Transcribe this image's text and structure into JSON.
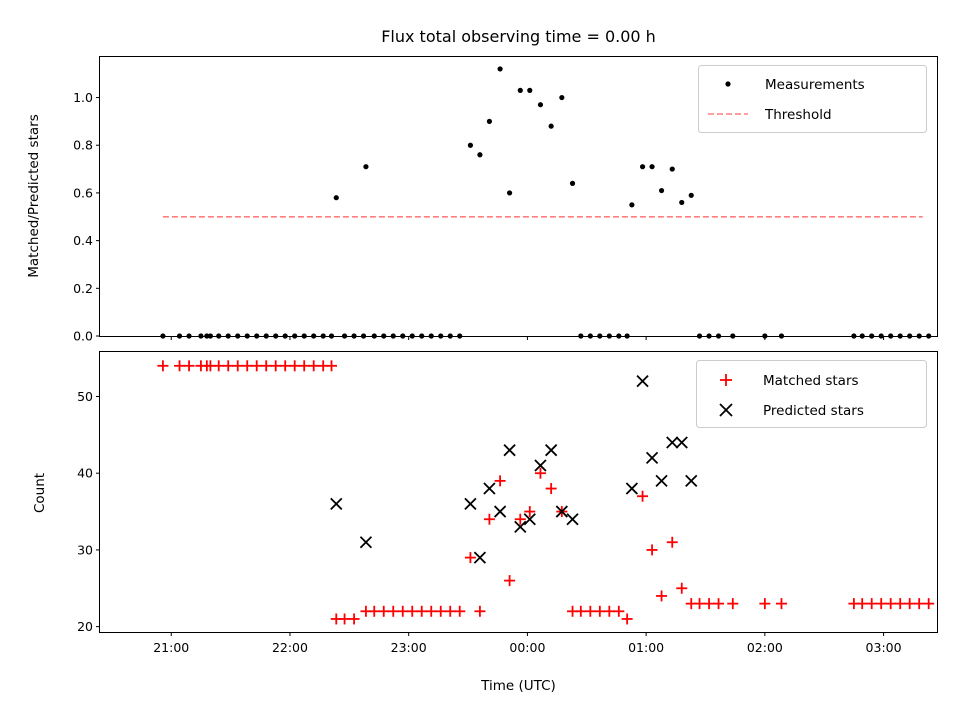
{
  "chart_data": {
    "title": "Flux total observing time = 0.00 h",
    "xlabel": "Time (UTC)",
    "x_unit": "hours (UTC), values after midnight continue above 24",
    "xlim": [
      20.4,
      27.45
    ],
    "x_ticks": [
      {
        "value": 21,
        "label": "21:00"
      },
      {
        "value": 22,
        "label": "22:00"
      },
      {
        "value": 23,
        "label": "23:00"
      },
      {
        "value": 24,
        "label": "00:00"
      },
      {
        "value": 25,
        "label": "01:00"
      },
      {
        "value": 26,
        "label": "02:00"
      },
      {
        "value": 27,
        "label": "03:00"
      }
    ],
    "panels": [
      {
        "type": "scatter",
        "ylabel": "Matched/Predicted stars",
        "ylim": [
          0,
          1.17
        ],
        "y_ticks": [
          {
            "value": 0.0,
            "label": "0.0"
          },
          {
            "value": 0.2,
            "label": "0.2"
          },
          {
            "value": 0.4,
            "label": "0.4"
          },
          {
            "value": 0.6,
            "label": "0.6"
          },
          {
            "value": 0.8,
            "label": "0.8"
          },
          {
            "value": 1.0,
            "label": "1.0"
          }
        ],
        "legend_position": "top-right",
        "series": [
          {
            "name": "Measurements",
            "marker": "dot",
            "color": "#000000",
            "points": [
              [
                20.93,
                0
              ],
              [
                21.07,
                0
              ],
              [
                21.15,
                0
              ],
              [
                21.25,
                0
              ],
              [
                21.3,
                0
              ],
              [
                21.33,
                0
              ],
              [
                21.4,
                0
              ],
              [
                21.48,
                0
              ],
              [
                21.56,
                0
              ],
              [
                21.64,
                0
              ],
              [
                21.72,
                0
              ],
              [
                21.8,
                0
              ],
              [
                21.88,
                0
              ],
              [
                21.96,
                0
              ],
              [
                22.04,
                0
              ],
              [
                22.12,
                0
              ],
              [
                22.2,
                0
              ],
              [
                22.28,
                0
              ],
              [
                22.35,
                0
              ],
              [
                22.39,
                0.58
              ],
              [
                22.46,
                0
              ],
              [
                22.54,
                0
              ],
              [
                22.62,
                0
              ],
              [
                22.64,
                0.71
              ],
              [
                22.71,
                0
              ],
              [
                22.79,
                0
              ],
              [
                22.87,
                0
              ],
              [
                22.95,
                0
              ],
              [
                23.03,
                0
              ],
              [
                23.11,
                0
              ],
              [
                23.19,
                0
              ],
              [
                23.27,
                0
              ],
              [
                23.35,
                0
              ],
              [
                23.43,
                0
              ],
              [
                23.52,
                0.8
              ],
              [
                23.6,
                0.76
              ],
              [
                23.68,
                0.9
              ],
              [
                23.77,
                1.12
              ],
              [
                23.85,
                0.6
              ],
              [
                23.94,
                1.03
              ],
              [
                24.02,
                1.03
              ],
              [
                24.11,
                0.97
              ],
              [
                24.2,
                0.88
              ],
              [
                24.29,
                1.0
              ],
              [
                24.38,
                0.64
              ],
              [
                24.45,
                0
              ],
              [
                24.53,
                0
              ],
              [
                24.61,
                0
              ],
              [
                24.69,
                0
              ],
              [
                24.77,
                0
              ],
              [
                24.84,
                0
              ],
              [
                24.88,
                0.55
              ],
              [
                24.97,
                0.71
              ],
              [
                25.05,
                0.71
              ],
              [
                25.13,
                0.61
              ],
              [
                25.22,
                0.7
              ],
              [
                25.3,
                0.56
              ],
              [
                25.38,
                0.59
              ],
              [
                25.45,
                0
              ],
              [
                25.53,
                0
              ],
              [
                25.61,
                0
              ],
              [
                25.73,
                0
              ],
              [
                26.0,
                0
              ],
              [
                26.14,
                0
              ],
              [
                26.75,
                0
              ],
              [
                26.82,
                0
              ],
              [
                26.9,
                0
              ],
              [
                26.98,
                0
              ],
              [
                27.06,
                0
              ],
              [
                27.14,
                0
              ],
              [
                27.22,
                0
              ],
              [
                27.3,
                0
              ],
              [
                27.38,
                0
              ]
            ]
          },
          {
            "name": "Threshold",
            "marker": "dashed-line",
            "color": "#ff7f7f",
            "points": [
              [
                20.93,
                0.5
              ],
              [
                27.33,
                0.5
              ]
            ]
          }
        ]
      },
      {
        "type": "scatter",
        "ylabel": "Count",
        "ylim": [
          19.3,
          55.8
        ],
        "y_ticks": [
          {
            "value": 20,
            "label": "20"
          },
          {
            "value": 30,
            "label": "30"
          },
          {
            "value": 40,
            "label": "40"
          },
          {
            "value": 50,
            "label": "50"
          }
        ],
        "legend_position": "top-right",
        "series": [
          {
            "name": "Matched stars",
            "marker": "plus",
            "color": "#ff0000",
            "points": [
              [
                20.93,
                54
              ],
              [
                21.07,
                54
              ],
              [
                21.15,
                54
              ],
              [
                21.25,
                54
              ],
              [
                21.3,
                54
              ],
              [
                21.33,
                54
              ],
              [
                21.4,
                54
              ],
              [
                21.48,
                54
              ],
              [
                21.56,
                54
              ],
              [
                21.64,
                54
              ],
              [
                21.72,
                54
              ],
              [
                21.8,
                54
              ],
              [
                21.88,
                54
              ],
              [
                21.96,
                54
              ],
              [
                22.04,
                54
              ],
              [
                22.12,
                54
              ],
              [
                22.2,
                54
              ],
              [
                22.28,
                54
              ],
              [
                22.35,
                54
              ],
              [
                22.39,
                21
              ],
              [
                22.46,
                21
              ],
              [
                22.54,
                21
              ],
              [
                22.64,
                22
              ],
              [
                22.71,
                22
              ],
              [
                22.79,
                22
              ],
              [
                22.87,
                22
              ],
              [
                22.95,
                22
              ],
              [
                23.03,
                22
              ],
              [
                23.11,
                22
              ],
              [
                23.19,
                22
              ],
              [
                23.27,
                22
              ],
              [
                23.35,
                22
              ],
              [
                23.43,
                22
              ],
              [
                23.52,
                29
              ],
              [
                23.6,
                22
              ],
              [
                23.68,
                34
              ],
              [
                23.77,
                39
              ],
              [
                23.85,
                26
              ],
              [
                23.94,
                34
              ],
              [
                24.02,
                35
              ],
              [
                24.11,
                40
              ],
              [
                24.2,
                38
              ],
              [
                24.29,
                35
              ],
              [
                24.38,
                22
              ],
              [
                24.45,
                22
              ],
              [
                24.53,
                22
              ],
              [
                24.61,
                22
              ],
              [
                24.69,
                22
              ],
              [
                24.77,
                22
              ],
              [
                24.84,
                21
              ],
              [
                24.97,
                37
              ],
              [
                25.05,
                30
              ],
              [
                25.13,
                24
              ],
              [
                25.22,
                31
              ],
              [
                25.3,
                25
              ],
              [
                25.38,
                23
              ],
              [
                25.45,
                23
              ],
              [
                25.53,
                23
              ],
              [
                25.61,
                23
              ],
              [
                25.73,
                23
              ],
              [
                26.0,
                23
              ],
              [
                26.14,
                23
              ],
              [
                26.75,
                23
              ],
              [
                26.82,
                23
              ],
              [
                26.9,
                23
              ],
              [
                26.98,
                23
              ],
              [
                27.06,
                23
              ],
              [
                27.14,
                23
              ],
              [
                27.22,
                23
              ],
              [
                27.3,
                23
              ],
              [
                27.38,
                23
              ]
            ]
          },
          {
            "name": "Predicted stars",
            "marker": "x",
            "color": "#000000",
            "points": [
              [
                22.39,
                36
              ],
              [
                22.64,
                31
              ],
              [
                23.52,
                36
              ],
              [
                23.6,
                29
              ],
              [
                23.68,
                38
              ],
              [
                23.77,
                35
              ],
              [
                23.85,
                43
              ],
              [
                23.94,
                33
              ],
              [
                24.02,
                34
              ],
              [
                24.11,
                41
              ],
              [
                24.2,
                43
              ],
              [
                24.29,
                35
              ],
              [
                24.38,
                34
              ],
              [
                24.88,
                38
              ],
              [
                24.97,
                52
              ],
              [
                25.05,
                42
              ],
              [
                25.13,
                39
              ],
              [
                25.22,
                44
              ],
              [
                25.3,
                44
              ],
              [
                25.38,
                39
              ]
            ]
          }
        ]
      }
    ]
  }
}
